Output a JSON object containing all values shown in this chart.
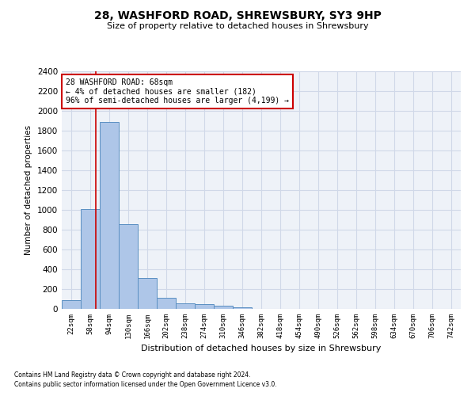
{
  "title1": "28, WASHFORD ROAD, SHREWSBURY, SY3 9HP",
  "title2": "Size of property relative to detached houses in Shrewsbury",
  "xlabel": "Distribution of detached houses by size in Shrewsbury",
  "ylabel": "Number of detached properties",
  "bar_labels": [
    "22sqm",
    "58sqm",
    "94sqm",
    "130sqm",
    "166sqm",
    "202sqm",
    "238sqm",
    "274sqm",
    "310sqm",
    "346sqm",
    "382sqm",
    "418sqm",
    "454sqm",
    "490sqm",
    "526sqm",
    "562sqm",
    "598sqm",
    "634sqm",
    "670sqm",
    "706sqm",
    "742sqm"
  ],
  "bar_values": [
    90,
    1010,
    1890,
    860,
    310,
    115,
    58,
    48,
    32,
    20,
    0,
    0,
    0,
    0,
    0,
    0,
    0,
    0,
    0,
    0,
    0
  ],
  "bar_color": "#aec6e8",
  "bar_edge_color": "#5a8fc2",
  "grid_color": "#d0d8e8",
  "bg_color": "#eef2f8",
  "marker_label_line1": "28 WASHFORD ROAD: 68sqm",
  "marker_label_line2": "← 4% of detached houses are smaller (182)",
  "marker_label_line3": "96% of semi-detached houses are larger (4,199) →",
  "marker_color": "#cc0000",
  "annotation_box_color": "#cc0000",
  "ylim": [
    0,
    2400
  ],
  "yticks": [
    0,
    200,
    400,
    600,
    800,
    1000,
    1200,
    1400,
    1600,
    1800,
    2000,
    2200,
    2400
  ],
  "footer1": "Contains HM Land Registry data © Crown copyright and database right 2024.",
  "footer2": "Contains public sector information licensed under the Open Government Licence v3.0."
}
